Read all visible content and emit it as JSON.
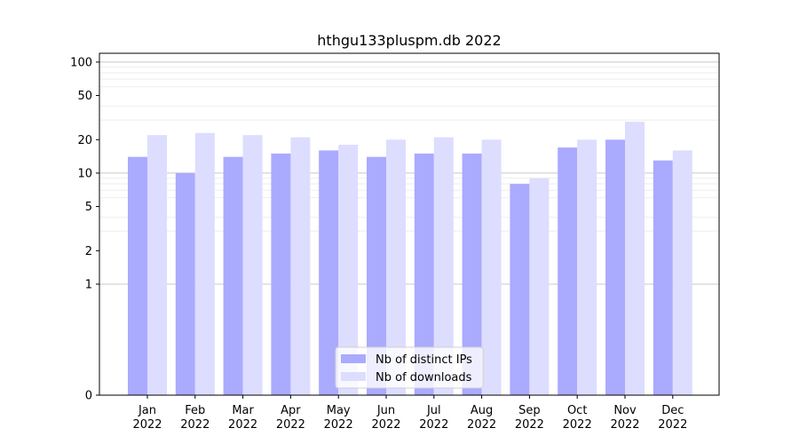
{
  "chart_data": {
    "type": "bar",
    "title": "hthgu133pluspm.db 2022",
    "xlabel": "",
    "ylabel": "",
    "y_scale": "symlog",
    "ylim": [
      0,
      120
    ],
    "y_ticks": [
      0,
      1,
      2,
      5,
      10,
      20,
      50,
      100
    ],
    "grid": "horizontal",
    "legend_position": "bottom-center",
    "categories": [
      [
        "Jan",
        "2022"
      ],
      [
        "Feb",
        "2022"
      ],
      [
        "Mar",
        "2022"
      ],
      [
        "Apr",
        "2022"
      ],
      [
        "May",
        "2022"
      ],
      [
        "Jun",
        "2022"
      ],
      [
        "Jul",
        "2022"
      ],
      [
        "Aug",
        "2022"
      ],
      [
        "Sep",
        "2022"
      ],
      [
        "Oct",
        "2022"
      ],
      [
        "Nov",
        "2022"
      ],
      [
        "Dec",
        "2022"
      ]
    ],
    "series": [
      {
        "name": "Nb of distinct IPs",
        "color": "#aaaaff",
        "values": [
          14,
          10,
          14,
          15,
          16,
          14,
          15,
          15,
          8,
          17,
          20,
          13
        ]
      },
      {
        "name": "Nb of downloads",
        "color": "#ddddff",
        "values": [
          22,
          23,
          22,
          21,
          18,
          20,
          21,
          20,
          9,
          20,
          29,
          16
        ]
      }
    ]
  }
}
